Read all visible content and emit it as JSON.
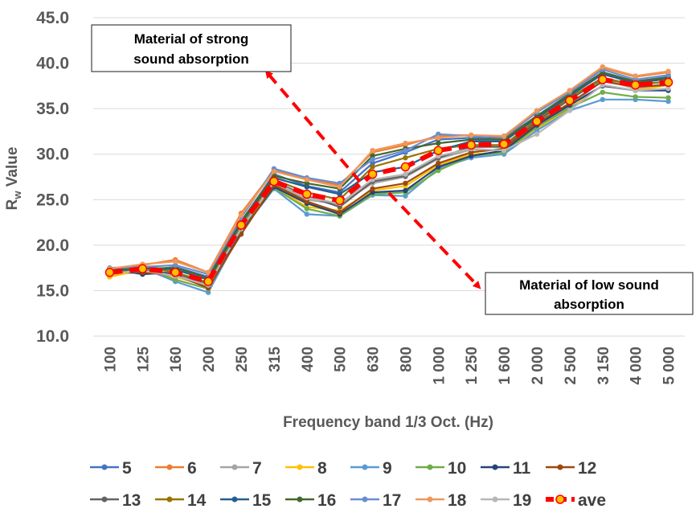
{
  "chart_data": {
    "type": "line",
    "title": "",
    "xlabel": "Frequency band 1/3 Oct. (Hz)",
    "ylabel": "Rw Value",
    "ylabel_main": "R",
    "ylabel_sub": "w",
    "ylabel_rest": " Value",
    "ylim": [
      10,
      45
    ],
    "yticks": [
      "10.0",
      "15.0",
      "20.0",
      "25.0",
      "30.0",
      "35.0",
      "40.0",
      "45.0"
    ],
    "grid": true,
    "legend_position": "bottom",
    "categories": [
      "100",
      "125",
      "160",
      "200",
      "250",
      "315",
      "400",
      "500",
      "630",
      "800",
      "1 000",
      "1 250",
      "1 600",
      "2 000",
      "2 500",
      "3 150",
      "4 000",
      "5 000"
    ],
    "series": [
      {
        "name": "5",
        "color": "#4472C4",
        "values": [
          17.0,
          17.2,
          17.6,
          16.5,
          22.6,
          27.8,
          26.5,
          25.8,
          29.0,
          30.2,
          31.6,
          31.8,
          31.7,
          34.2,
          36.6,
          39.0,
          38.0,
          38.5
        ]
      },
      {
        "name": "6",
        "color": "#ED7D31",
        "values": [
          17.2,
          17.8,
          18.4,
          17.0,
          23.5,
          28.2,
          27.3,
          26.6,
          30.2,
          31.0,
          32.0,
          32.1,
          31.8,
          34.6,
          37.0,
          39.5,
          38.5,
          39.0
        ]
      },
      {
        "name": "7",
        "color": "#A5A5A5",
        "values": [
          16.8,
          17.0,
          16.8,
          15.8,
          21.8,
          26.8,
          25.0,
          24.5,
          26.8,
          27.5,
          29.5,
          30.5,
          30.4,
          33.0,
          35.2,
          38.2,
          37.2,
          37.8
        ]
      },
      {
        "name": "8",
        "color": "#FFC000",
        "values": [
          16.5,
          17.3,
          16.5,
          15.5,
          21.5,
          26.5,
          24.2,
          23.8,
          26.0,
          26.5,
          28.8,
          30.0,
          30.2,
          32.8,
          35.0,
          37.6,
          37.0,
          37.6
        ]
      },
      {
        "name": "9",
        "color": "#5B9BD5",
        "values": [
          17.0,
          17.5,
          16.0,
          14.8,
          21.5,
          26.2,
          23.4,
          23.2,
          25.5,
          25.4,
          28.4,
          29.6,
          30.0,
          32.6,
          34.8,
          36.0,
          36.0,
          35.8
        ]
      },
      {
        "name": "10",
        "color": "#70AD47",
        "values": [
          17.3,
          17.6,
          16.2,
          15.2,
          21.6,
          26.3,
          24.0,
          23.2,
          25.6,
          25.8,
          28.2,
          29.8,
          30.2,
          33.0,
          35.1,
          36.8,
          36.3,
          36.2
        ]
      },
      {
        "name": "11",
        "color": "#264478",
        "values": [
          17.4,
          16.8,
          17.0,
          15.6,
          21.4,
          26.4,
          24.6,
          23.4,
          25.8,
          26.0,
          28.6,
          29.8,
          30.4,
          33.2,
          35.4,
          37.5,
          37.0,
          37.0
        ]
      },
      {
        "name": "12",
        "color": "#9E480E",
        "values": [
          17.2,
          17.0,
          16.7,
          15.3,
          21.2,
          26.6,
          24.8,
          23.6,
          26.2,
          26.8,
          29.0,
          30.2,
          30.6,
          33.4,
          35.6,
          38.0,
          37.4,
          37.6
        ]
      },
      {
        "name": "13",
        "color": "#636363",
        "values": [
          17.1,
          17.2,
          16.9,
          15.8,
          21.7,
          27.0,
          25.4,
          24.2,
          27.0,
          27.6,
          29.6,
          30.8,
          30.8,
          33.6,
          36.0,
          38.3,
          37.6,
          38.0
        ]
      },
      {
        "name": "14",
        "color": "#997300",
        "values": [
          17.3,
          17.7,
          17.0,
          15.9,
          22.0,
          27.2,
          25.8,
          25.0,
          28.6,
          29.6,
          30.6,
          31.0,
          31.0,
          33.8,
          36.2,
          38.4,
          37.6,
          38.0
        ]
      },
      {
        "name": "15",
        "color": "#255E91",
        "values": [
          17.4,
          17.6,
          17.3,
          16.2,
          22.4,
          27.4,
          26.4,
          25.6,
          28.0,
          28.6,
          30.4,
          31.4,
          31.4,
          34.0,
          36.4,
          38.8,
          37.8,
          38.3
        ]
      },
      {
        "name": "16",
        "color": "#43682B",
        "values": [
          17.2,
          17.4,
          17.5,
          16.4,
          22.6,
          27.6,
          26.8,
          26.2,
          29.8,
          30.6,
          31.2,
          31.6,
          31.6,
          34.2,
          36.6,
          39.0,
          38.0,
          38.4
        ]
      },
      {
        "name": "17",
        "color": "#698ED0",
        "values": [
          17.5,
          17.6,
          17.8,
          16.8,
          23.0,
          28.4,
          27.4,
          26.8,
          29.4,
          30.4,
          32.2,
          32.0,
          31.9,
          34.6,
          36.8,
          39.3,
          38.2,
          38.7
        ]
      },
      {
        "name": "18",
        "color": "#F1975A",
        "values": [
          17.4,
          17.9,
          18.2,
          17.0,
          23.3,
          28.1,
          27.2,
          26.4,
          30.4,
          31.2,
          31.8,
          32.1,
          32.0,
          34.8,
          37.0,
          39.6,
          38.6,
          39.1
        ]
      },
      {
        "name": "19",
        "color": "#B7B7B7",
        "values": [
          16.9,
          17.2,
          16.6,
          15.6,
          21.8,
          26.9,
          25.2,
          24.6,
          27.2,
          27.8,
          29.8,
          30.6,
          30.4,
          32.2,
          34.8,
          37.6,
          37.0,
          37.2
        ]
      }
    ],
    "average": {
      "name": "ave",
      "color": "#FF0000",
      "marker_color": "#FFC000",
      "values": [
        17.0,
        17.4,
        17.0,
        16.0,
        22.2,
        27.0,
        25.6,
        24.9,
        27.8,
        28.6,
        30.4,
        31.0,
        31.1,
        33.6,
        35.9,
        38.2,
        37.6,
        37.9
      ]
    },
    "annotations": [
      {
        "line1": "Material of strong",
        "line2": "sound absorption"
      },
      {
        "line1": "Material  of low sound",
        "line2": "absorption"
      }
    ]
  }
}
